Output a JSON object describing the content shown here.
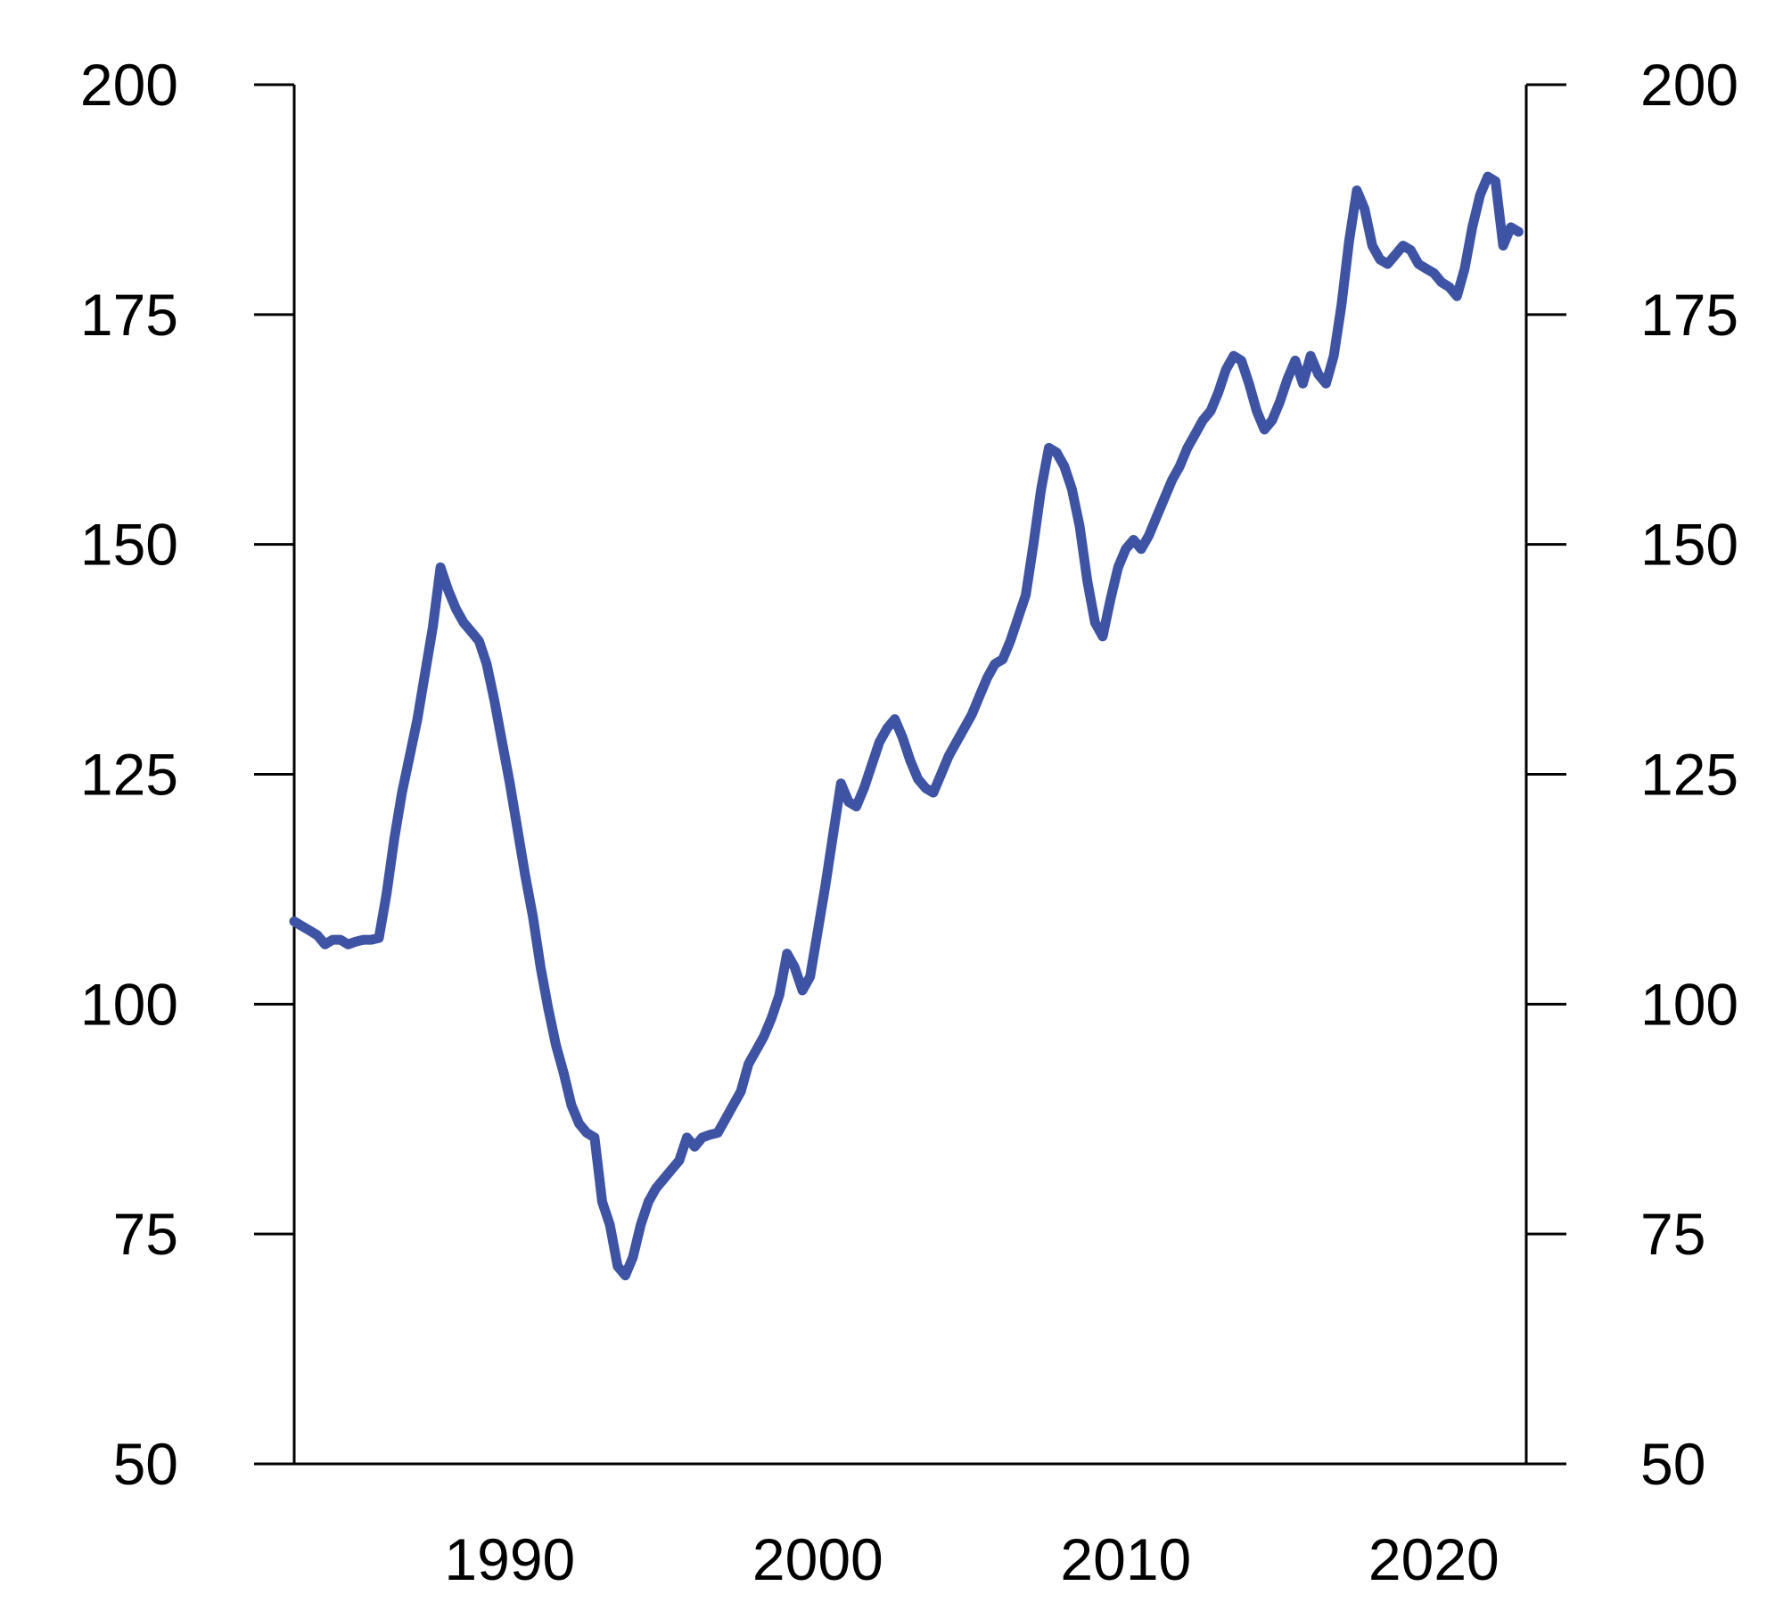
{
  "chart_data": {
    "type": "line",
    "title": "",
    "xlabel": "",
    "ylabel": "",
    "x_start": 1983.0,
    "x_step": 0.25,
    "values": [
      109,
      108.5,
      108,
      107.5,
      106.5,
      107,
      107,
      106.5,
      106.8,
      107,
      107,
      107.2,
      112,
      118,
      123,
      127,
      131,
      136,
      141,
      147.5,
      145,
      143,
      141.5,
      140.5,
      139.5,
      137,
      133,
      128.5,
      124,
      119,
      114,
      109.5,
      104,
      99.5,
      95.5,
      92.5,
      89,
      87,
      86,
      85.5,
      78.5,
      76,
      71.5,
      70.5,
      72.5,
      76,
      78.5,
      80,
      81,
      82,
      83,
      85.5,
      84.5,
      85.5,
      85.8,
      86,
      87.5,
      89,
      90.5,
      93.5,
      95,
      96.5,
      98.5,
      101,
      105.5,
      104,
      101.5,
      103,
      108,
      113,
      118.5,
      124,
      122,
      121.5,
      123.5,
      126,
      128.5,
      130,
      131,
      129,
      126.5,
      124.5,
      123.5,
      123,
      125,
      127,
      128.5,
      130,
      131.5,
      133.5,
      135.5,
      137,
      137.5,
      139.5,
      142,
      144.5,
      150,
      156,
      160.5,
      160,
      158.5,
      156,
      152,
      146,
      141.5,
      140,
      144,
      147.5,
      149.5,
      150.5,
      149.5,
      151,
      153,
      155,
      157,
      158.5,
      160.5,
      162,
      163.5,
      164.5,
      166.5,
      169,
      170.5,
      170,
      167.5,
      164.5,
      162.5,
      163.5,
      165.5,
      168,
      170,
      167.5,
      170.5,
      168.5,
      167.5,
      170.5,
      176,
      183,
      188.5,
      186.5,
      182.5,
      181,
      180.5,
      181.5,
      182.5,
      182,
      180.5,
      180,
      179.5,
      178.5,
      178,
      177,
      180,
      184.5,
      188,
      190,
      189.5,
      182.5,
      184.5,
      184
    ],
    "x_ticks": [
      1990,
      2000,
      2010,
      2020
    ],
    "y_ticks": [
      50,
      75,
      100,
      125,
      150,
      175,
      200
    ],
    "xlim": [
      1983,
      2023
    ],
    "ylim": [
      50,
      200
    ],
    "y_axis_sides": [
      "left",
      "right"
    ],
    "grid": false,
    "legend": "none",
    "line_color": "#3e53a4",
    "axis_color": "#000000",
    "background_color": "#ffffff"
  }
}
